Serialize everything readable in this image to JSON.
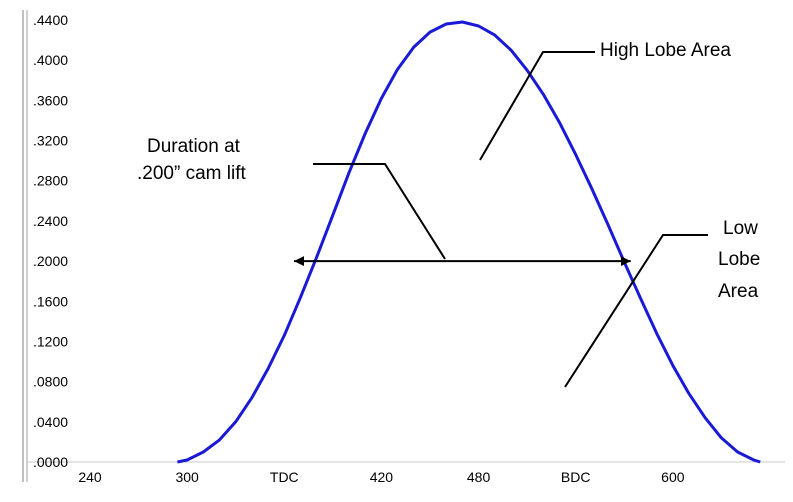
{
  "chart_data": {
    "type": "line",
    "title": "",
    "xlabel": "",
    "ylabel": "",
    "x_tick_labels": [
      {
        "x": 240,
        "label": "240"
      },
      {
        "x": 300,
        "label": "300"
      },
      {
        "x": 360,
        "label": "TDC"
      },
      {
        "x": 420,
        "label": "420"
      },
      {
        "x": 480,
        "label": "480"
      },
      {
        "x": 540,
        "label": "BDC"
      },
      {
        "x": 600,
        "label": "600"
      }
    ],
    "y_tick_labels": [
      ".0000",
      ".0400",
      ".0800",
      ".1200",
      ".1600",
      ".2000",
      ".2400",
      ".2800",
      ".3200",
      ".3600",
      ".4000",
      ".4400"
    ],
    "xlim": [
      240,
      660
    ],
    "ylim": [
      0,
      0.44
    ],
    "grid": false,
    "legend": "none",
    "series": [
      {
        "color": "#1a1ad6",
        "x": [
          294,
          300,
          310,
          320,
          330,
          340,
          350,
          360,
          370,
          380,
          390,
          400,
          410,
          420,
          430,
          440,
          450,
          460,
          470,
          480,
          490,
          500,
          510,
          520,
          530,
          540,
          550,
          560,
          570,
          580,
          590,
          600,
          610,
          620,
          630,
          640,
          650,
          654
        ],
        "y": [
          0.0,
          0.002,
          0.01,
          0.022,
          0.04,
          0.064,
          0.093,
          0.126,
          0.164,
          0.204,
          0.246,
          0.288,
          0.327,
          0.362,
          0.391,
          0.413,
          0.428,
          0.436,
          0.438,
          0.434,
          0.425,
          0.41,
          0.39,
          0.366,
          0.338,
          0.306,
          0.272,
          0.236,
          0.199,
          0.163,
          0.128,
          0.096,
          0.068,
          0.044,
          0.024,
          0.01,
          0.002,
          0.0
        ]
      }
    ],
    "annotations": {
      "duration_line1": "Duration at",
      "duration_line2": ".200” cam lift",
      "duration_span": [
        366,
        574
      ],
      "duration_lift": 0.2,
      "high_lobe": "High Lobe Area",
      "low_line1": "Low",
      "low_line2": "Lobe",
      "low_line3": "Area"
    }
  }
}
